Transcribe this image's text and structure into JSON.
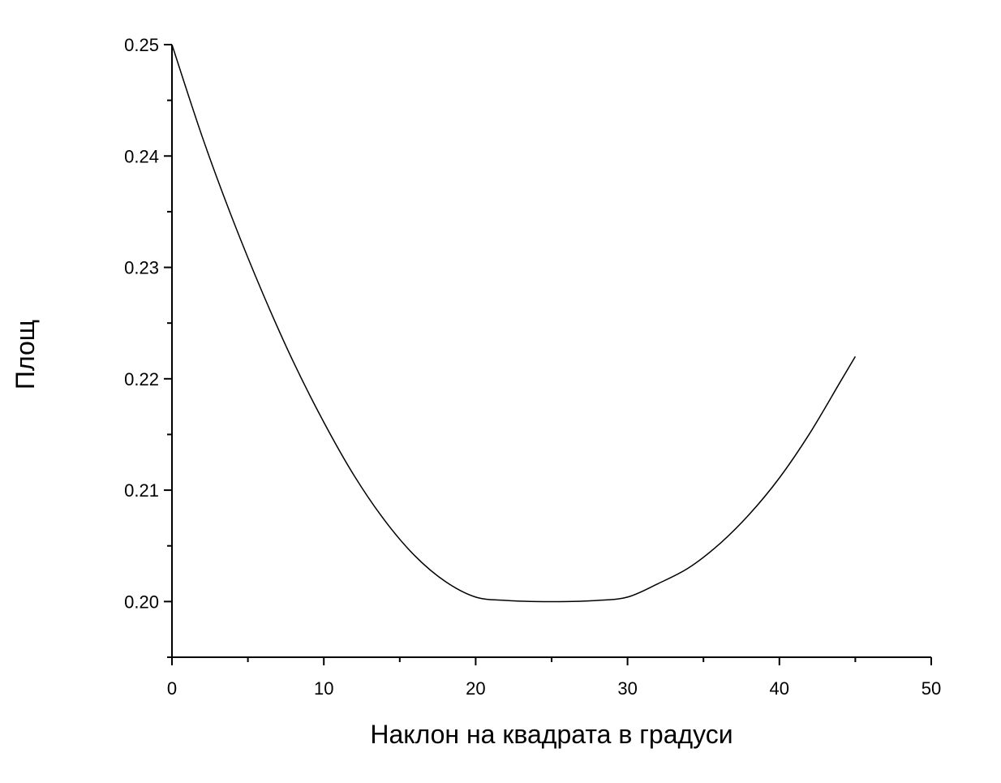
{
  "chart_data": {
    "type": "line",
    "title": "",
    "xlabel": "Наклон на квадрата в градуси",
    "ylabel": "Площ",
    "xlim": [
      0,
      50
    ],
    "ylim": [
      0.195,
      0.25
    ],
    "x_ticks": [
      {
        "value": 0,
        "label": "0"
      },
      {
        "value": 10,
        "label": "10"
      },
      {
        "value": 20,
        "label": "20"
      },
      {
        "value": 30,
        "label": "30"
      },
      {
        "value": 40,
        "label": "40"
      },
      {
        "value": 50,
        "label": "50"
      }
    ],
    "x_minor_ticks": [
      5,
      15,
      25,
      35,
      45
    ],
    "y_ticks": [
      {
        "value": 0.2,
        "label": "0.20"
      },
      {
        "value": 0.21,
        "label": "0.21"
      },
      {
        "value": 0.22,
        "label": "0.22"
      },
      {
        "value": 0.23,
        "label": "0.23"
      },
      {
        "value": 0.24,
        "label": "0.24"
      },
      {
        "value": 0.25,
        "label": "0.25"
      }
    ],
    "y_minor_ticks": [
      0.195,
      0.205,
      0.215,
      0.225,
      0.235,
      0.245
    ],
    "grid": false,
    "legend": "none",
    "line_color": "#000000",
    "series": [
      {
        "x": [
          0,
          2,
          4,
          6,
          8,
          10,
          12,
          14,
          16,
          18,
          20,
          22,
          24,
          26,
          28,
          30,
          32,
          34,
          36,
          38,
          40,
          42,
          44,
          45
        ],
        "values": [
          0.25,
          0.2417,
          0.2343,
          0.2276,
          0.2215,
          0.2161,
          0.2113,
          0.2073,
          0.2041,
          0.2018,
          0.2004,
          0.2001,
          0.2,
          0.2,
          0.2001,
          0.2004,
          0.2016,
          0.203,
          0.2051,
          0.2078,
          0.2111,
          0.2151,
          0.2197,
          0.222
        ]
      }
    ]
  }
}
